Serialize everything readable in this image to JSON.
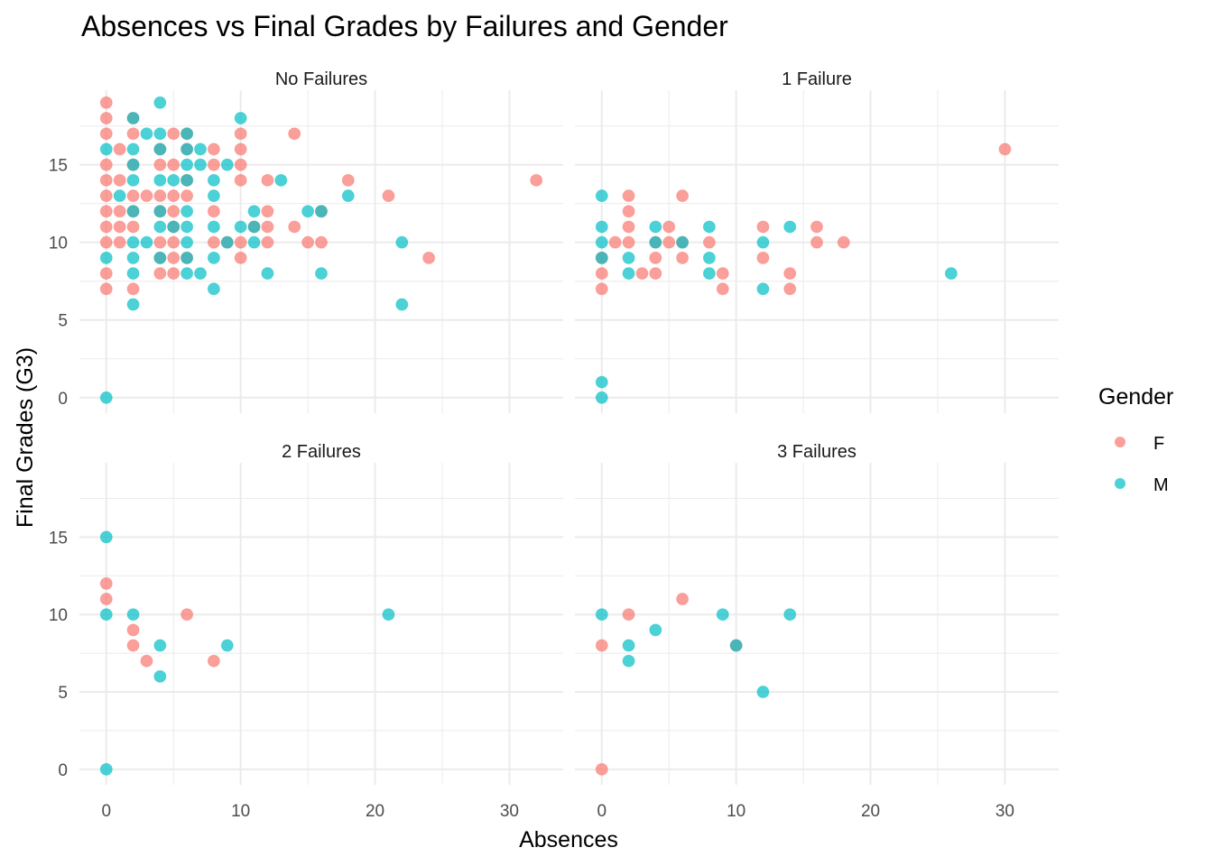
{
  "chart_data": {
    "type": "scatter",
    "title": "Absences vs Final Grades by Failures and Gender",
    "xlabel": "Absences",
    "ylabel": "Final Grades (G3)",
    "xlim": [
      -2,
      34
    ],
    "ylim": [
      -1,
      19.8
    ],
    "xticks": [
      0,
      10,
      20,
      30
    ],
    "yticks": [
      0,
      5,
      10,
      15
    ],
    "grid": true,
    "legend": {
      "title": "Gender",
      "position": "right",
      "entries": [
        {
          "label": "F",
          "color": "#F8766D"
        },
        {
          "label": "M",
          "color": "#00BFC4"
        }
      ]
    },
    "point_alpha": 0.7,
    "panels": [
      {
        "label": "No Failures",
        "points": {
          "F": [
            [
              0,
              19
            ],
            [
              0,
              18
            ],
            [
              2,
              18
            ],
            [
              0,
              17
            ],
            [
              2,
              17
            ],
            [
              5,
              17
            ],
            [
              6,
              17
            ],
            [
              10,
              17
            ],
            [
              14,
              17
            ],
            [
              1,
              16
            ],
            [
              4,
              16
            ],
            [
              6,
              16
            ],
            [
              8,
              16
            ],
            [
              10,
              16
            ],
            [
              0,
              15
            ],
            [
              2,
              15
            ],
            [
              4,
              15
            ],
            [
              5,
              15
            ],
            [
              8,
              15
            ],
            [
              10,
              15
            ],
            [
              0,
              14
            ],
            [
              1,
              14
            ],
            [
              6,
              14
            ],
            [
              10,
              14
            ],
            [
              12,
              14
            ],
            [
              18,
              14
            ],
            [
              32,
              14
            ],
            [
              0,
              13
            ],
            [
              2,
              13
            ],
            [
              3,
              13
            ],
            [
              4,
              13
            ],
            [
              5,
              13
            ],
            [
              6,
              13
            ],
            [
              21,
              13
            ],
            [
              0,
              12
            ],
            [
              1,
              12
            ],
            [
              2,
              12
            ],
            [
              4,
              12
            ],
            [
              5,
              12
            ],
            [
              8,
              12
            ],
            [
              12,
              12
            ],
            [
              16,
              12
            ],
            [
              0,
              11
            ],
            [
              1,
              11
            ],
            [
              2,
              11
            ],
            [
              5,
              11
            ],
            [
              11,
              11
            ],
            [
              12,
              11
            ],
            [
              14,
              11
            ],
            [
              0,
              10
            ],
            [
              1,
              10
            ],
            [
              4,
              10
            ],
            [
              5,
              10
            ],
            [
              8,
              10
            ],
            [
              9,
              10
            ],
            [
              10,
              10
            ],
            [
              12,
              10
            ],
            [
              15,
              10
            ],
            [
              16,
              10
            ],
            [
              4,
              9
            ],
            [
              5,
              9
            ],
            [
              6,
              9
            ],
            [
              10,
              9
            ],
            [
              24,
              9
            ],
            [
              0,
              8
            ],
            [
              4,
              8
            ],
            [
              5,
              8
            ],
            [
              0,
              7
            ],
            [
              2,
              7
            ]
          ],
          "M": [
            [
              4,
              19
            ],
            [
              2,
              18
            ],
            [
              10,
              18
            ],
            [
              3,
              17
            ],
            [
              4,
              17
            ],
            [
              6,
              17
            ],
            [
              0,
              16
            ],
            [
              2,
              16
            ],
            [
              4,
              16
            ],
            [
              6,
              16
            ],
            [
              7,
              16
            ],
            [
              2,
              15
            ],
            [
              6,
              15
            ],
            [
              7,
              15
            ],
            [
              9,
              15
            ],
            [
              2,
              14
            ],
            [
              4,
              14
            ],
            [
              5,
              14
            ],
            [
              6,
              14
            ],
            [
              8,
              14
            ],
            [
              13,
              14
            ],
            [
              1,
              13
            ],
            [
              8,
              13
            ],
            [
              18,
              13
            ],
            [
              2,
              12
            ],
            [
              4,
              12
            ],
            [
              6,
              12
            ],
            [
              11,
              12
            ],
            [
              15,
              12
            ],
            [
              16,
              12
            ],
            [
              4,
              11
            ],
            [
              5,
              11
            ],
            [
              6,
              11
            ],
            [
              8,
              11
            ],
            [
              10,
              11
            ],
            [
              11,
              11
            ],
            [
              2,
              10
            ],
            [
              3,
              10
            ],
            [
              6,
              10
            ],
            [
              9,
              10
            ],
            [
              11,
              10
            ],
            [
              22,
              10
            ],
            [
              0,
              9
            ],
            [
              2,
              9
            ],
            [
              4,
              9
            ],
            [
              6,
              9
            ],
            [
              8,
              9
            ],
            [
              2,
              8
            ],
            [
              6,
              8
            ],
            [
              7,
              8
            ],
            [
              12,
              8
            ],
            [
              16,
              8
            ],
            [
              8,
              7
            ],
            [
              2,
              6
            ],
            [
              22,
              6
            ],
            [
              0,
              0
            ]
          ]
        }
      },
      {
        "label": "1 Failure",
        "points": {
          "F": [
            [
              30,
              16
            ],
            [
              2,
              13
            ],
            [
              6,
              13
            ],
            [
              2,
              12
            ],
            [
              2,
              11
            ],
            [
              5,
              11
            ],
            [
              12,
              11
            ],
            [
              16,
              11
            ],
            [
              1,
              10
            ],
            [
              2,
              10
            ],
            [
              4,
              10
            ],
            [
              5,
              10
            ],
            [
              6,
              10
            ],
            [
              8,
              10
            ],
            [
              16,
              10
            ],
            [
              18,
              10
            ],
            [
              0,
              9
            ],
            [
              4,
              9
            ],
            [
              6,
              9
            ],
            [
              12,
              9
            ],
            [
              0,
              8
            ],
            [
              3,
              8
            ],
            [
              4,
              8
            ],
            [
              9,
              8
            ],
            [
              14,
              8
            ],
            [
              0,
              7
            ],
            [
              9,
              7
            ],
            [
              14,
              7
            ]
          ],
          "M": [
            [
              0,
              13
            ],
            [
              0,
              11
            ],
            [
              4,
              11
            ],
            [
              8,
              11
            ],
            [
              14,
              11
            ],
            [
              0,
              10
            ],
            [
              4,
              10
            ],
            [
              6,
              10
            ],
            [
              12,
              10
            ],
            [
              0,
              9
            ],
            [
              2,
              9
            ],
            [
              8,
              9
            ],
            [
              2,
              8
            ],
            [
              8,
              8
            ],
            [
              26,
              8
            ],
            [
              12,
              7
            ],
            [
              0,
              1
            ],
            [
              0,
              0
            ]
          ]
        }
      },
      {
        "label": "2 Failures",
        "points": {
          "F": [
            [
              0,
              12
            ],
            [
              0,
              11
            ],
            [
              6,
              10
            ],
            [
              2,
              9
            ],
            [
              2,
              8
            ],
            [
              3,
              7
            ],
            [
              8,
              7
            ]
          ],
          "M": [
            [
              0,
              15
            ],
            [
              0,
              10
            ],
            [
              2,
              10
            ],
            [
              21,
              10
            ],
            [
              4,
              8
            ],
            [
              9,
              8
            ],
            [
              4,
              6
            ],
            [
              0,
              0
            ]
          ]
        }
      },
      {
        "label": "3 Failures",
        "points": {
          "F": [
            [
              6,
              11
            ],
            [
              2,
              10
            ],
            [
              0,
              8
            ],
            [
              10,
              8
            ],
            [
              0,
              0
            ]
          ],
          "M": [
            [
              0,
              10
            ],
            [
              9,
              10
            ],
            [
              14,
              10
            ],
            [
              4,
              9
            ],
            [
              2,
              8
            ],
            [
              10,
              8
            ],
            [
              2,
              7
            ],
            [
              12,
              5
            ]
          ]
        }
      }
    ]
  }
}
